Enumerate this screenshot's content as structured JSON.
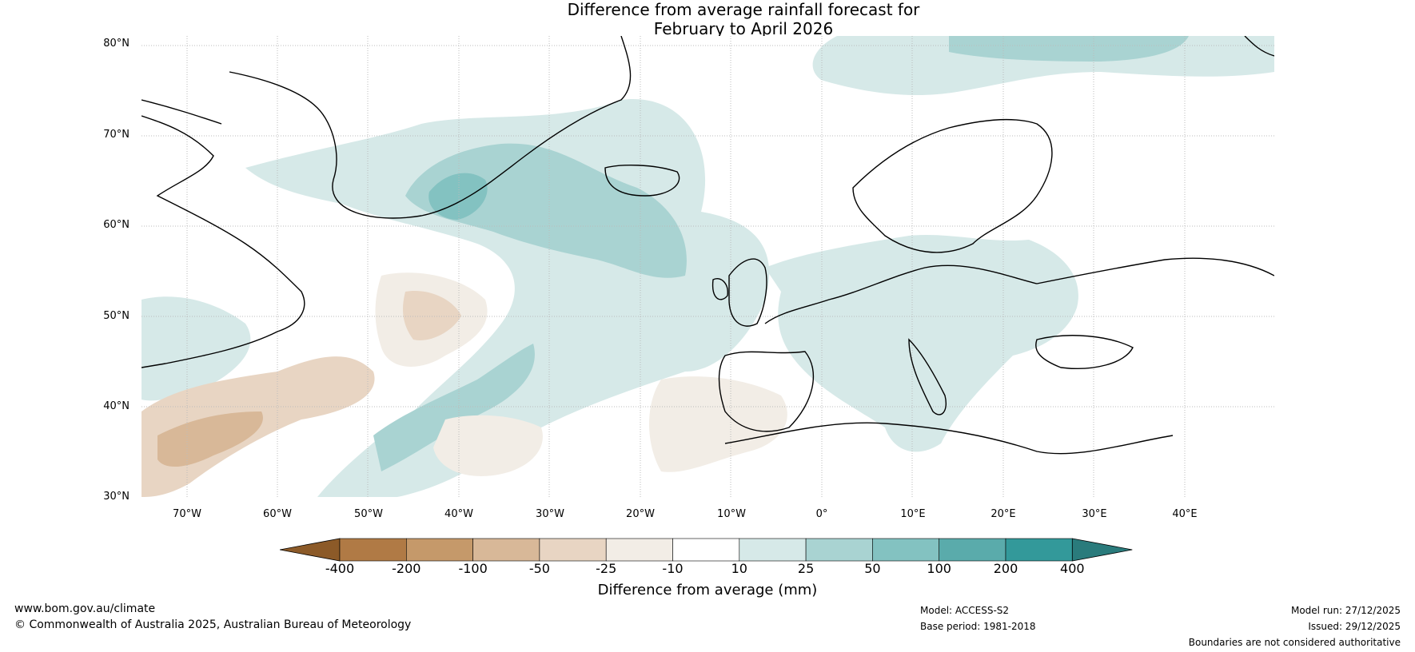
{
  "title": {
    "line1": "Difference from average rainfall forecast for",
    "line2": "February to April 2026"
  },
  "map": {
    "lat_labels": [
      "80°N",
      "70°N",
      "60°N",
      "50°N",
      "40°N",
      "30°N"
    ],
    "lon_labels": [
      "70°W",
      "60°W",
      "50°W",
      "40°W",
      "30°W",
      "20°W",
      "10°W",
      "0°",
      "10°E",
      "20°E",
      "30°E",
      "40°E"
    ]
  },
  "legend": {
    "label": "Difference from average (mm)",
    "ticks": [
      "-400",
      "-200",
      "-100",
      "-50",
      "-25",
      "-10",
      "10",
      "25",
      "50",
      "100",
      "200",
      "400"
    ],
    "colors": [
      "#8c5a28",
      "#b07a45",
      "#c5996a",
      "#d8b898",
      "#e8d5c3",
      "#f2ede6",
      "#ffffff",
      "#d6e9e8",
      "#a9d3d2",
      "#83c2c1",
      "#5aabab",
      "#33999a",
      "#2a7b7c"
    ]
  },
  "footer": {
    "website": "www.bom.gov.au/climate",
    "copyright": "© Commonwealth of Australia 2025, Australian Bureau of Meteorology",
    "model": "Model: ACCESS-S2",
    "base_period": "Base period: 1981-2018",
    "model_run": "Model run: 27/12/2025",
    "issued": "Issued: 29/12/2025",
    "disclaimer": "Boundaries are not considered authoritative"
  }
}
